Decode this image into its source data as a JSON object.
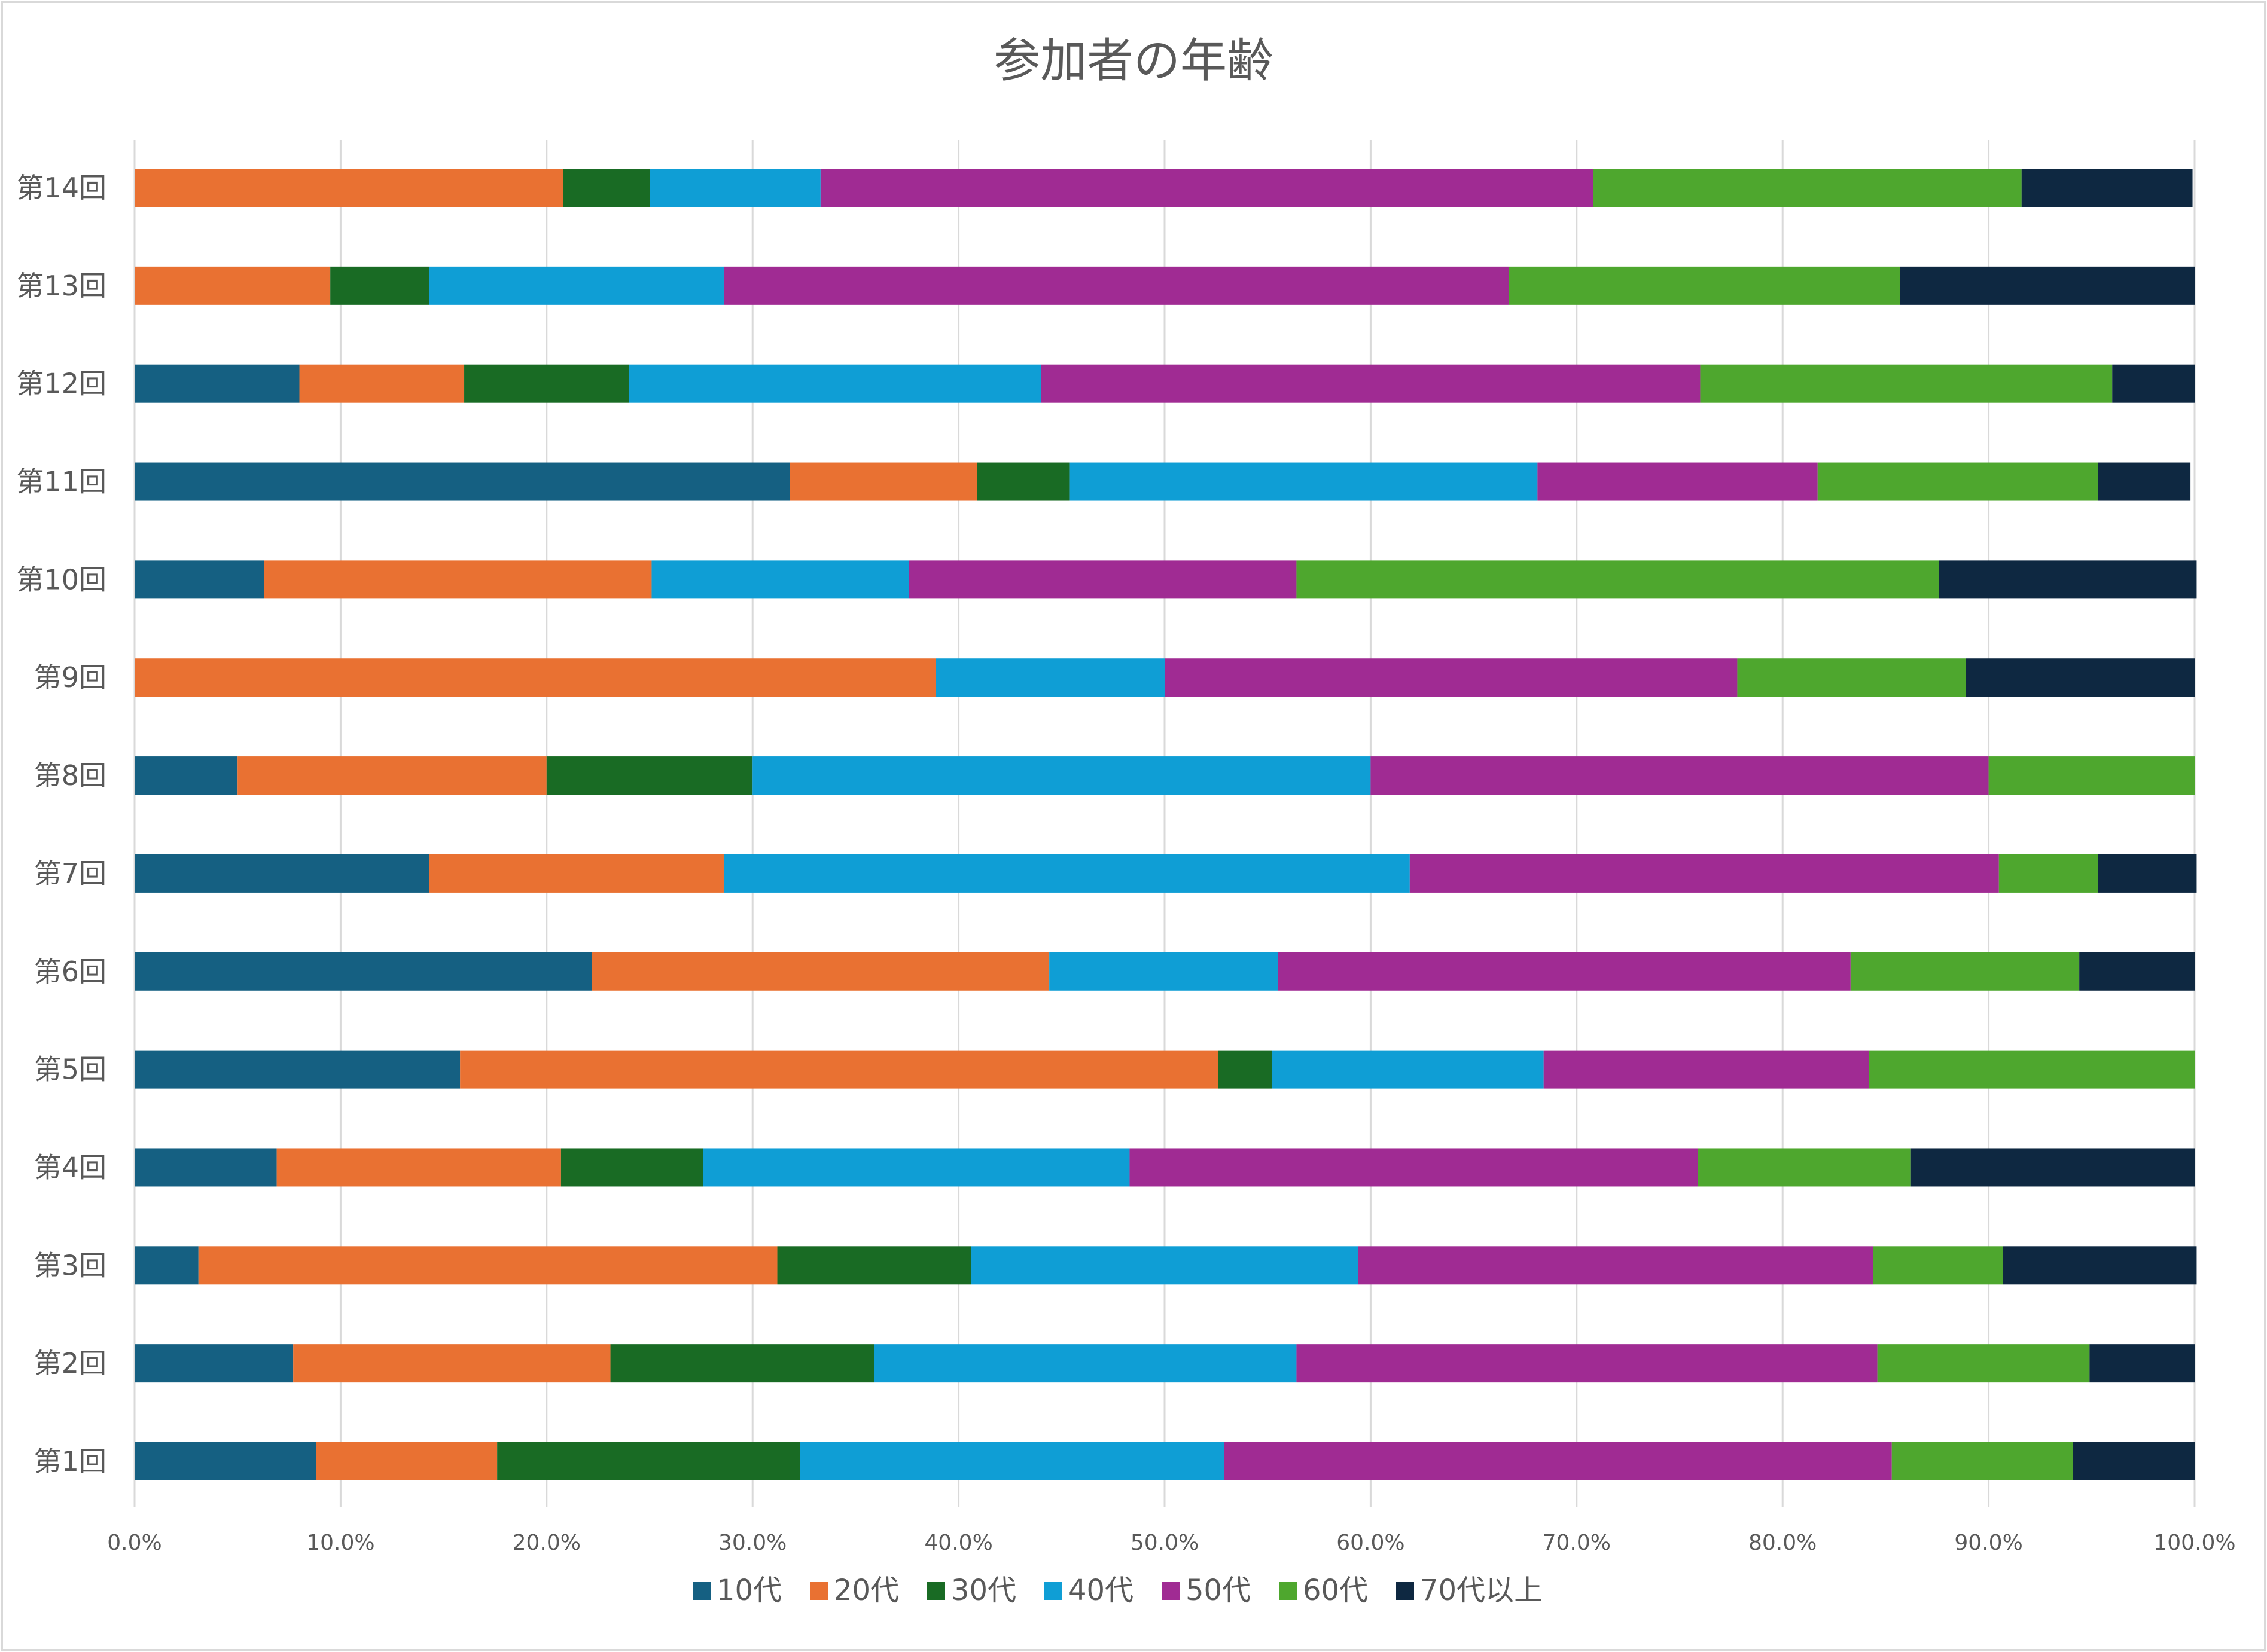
{
  "chart_data": {
    "type": "bar",
    "orientation": "horizontal",
    "stacked": "percent",
    "title": "参加者の年齢",
    "xlabel": "",
    "ylabel": "",
    "xlim": [
      0,
      100
    ],
    "grid": true,
    "legend_position": "bottom",
    "x_ticks": [
      "0.0%",
      "10.0%",
      "20.0%",
      "30.0%",
      "40.0%",
      "50.0%",
      "60.0%",
      "70.0%",
      "80.0%",
      "90.0%",
      "100.0%"
    ],
    "categories": [
      "第1回",
      "第2回",
      "第3回",
      "第4回",
      "第5回",
      "第6回",
      "第7回",
      "第8回",
      "第9回",
      "第10回",
      "第11回",
      "第12回",
      "第13回",
      "第14回"
    ],
    "series": [
      {
        "name": "10代",
        "color": "#156082",
        "values": [
          8.8,
          7.7,
          3.1,
          6.9,
          15.8,
          22.2,
          14.3,
          5.0,
          0,
          6.3,
          31.8,
          8.0,
          0,
          0
        ]
      },
      {
        "name": "20代",
        "color": "#E97132",
        "values": [
          8.8,
          15.4,
          28.1,
          13.8,
          36.8,
          22.2,
          14.3,
          15.0,
          38.9,
          18.8,
          9.1,
          8.0,
          9.5,
          20.8
        ]
      },
      {
        "name": "30代",
        "color": "#196B24",
        "values": [
          14.7,
          12.8,
          9.4,
          6.9,
          2.6,
          0,
          0,
          10.0,
          0,
          0,
          4.5,
          8.0,
          4.8,
          4.2
        ]
      },
      {
        "name": "40代",
        "color": "#0F9ED5",
        "values": [
          20.6,
          20.5,
          18.8,
          20.7,
          13.2,
          11.1,
          33.3,
          30.0,
          11.1,
          12.5,
          22.7,
          20.0,
          14.3,
          8.3
        ]
      },
      {
        "name": "50代",
        "color": "#A02B93",
        "values": [
          32.4,
          28.2,
          25.0,
          27.6,
          15.8,
          27.8,
          28.6,
          30.0,
          27.8,
          18.8,
          13.6,
          32.0,
          38.1,
          37.5
        ]
      },
      {
        "name": "60代",
        "color": "#4EA72E",
        "values": [
          8.8,
          10.3,
          6.3,
          10.3,
          15.8,
          11.1,
          4.8,
          10.0,
          11.1,
          31.2,
          13.6,
          20.0,
          19.0,
          20.8
        ]
      },
      {
        "name": "70代以上",
        "color": "#0E2841",
        "values": [
          5.9,
          5.1,
          9.4,
          13.8,
          0,
          5.6,
          4.8,
          0,
          11.1,
          12.5,
          4.5,
          4.0,
          14.3,
          8.3
        ]
      }
    ]
  }
}
